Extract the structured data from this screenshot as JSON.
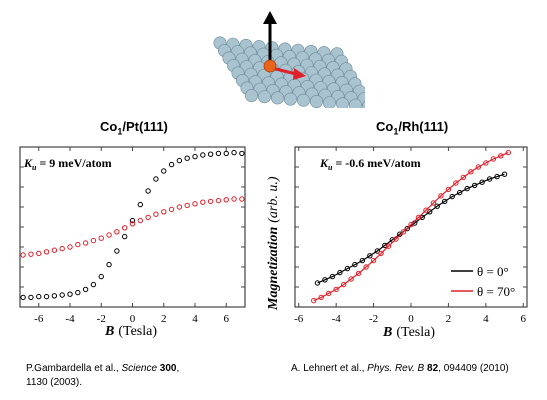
{
  "top_illustration": {
    "description_icon": "atom-on-surface-icon",
    "moment_color": "#000000",
    "inplane_color": "#e0202a",
    "atom_color": "#e8641a",
    "surface_color": "#a9c3d0"
  },
  "panels": [
    {
      "title_main": "Co",
      "title_sub": "1",
      "title_rest": "/Pt(111)",
      "annotation": "= 9 meV/atom",
      "annotation_symbol": "K",
      "annotation_symbol_sub": "u",
      "xlabel": "B",
      "xlabel_unit": "(Tesla)",
      "ylabel": "",
      "citation_line1_prefix": "P.Gambardella et al., ",
      "citation_journal": "Science",
      "citation_volume": "300",
      "citation_line1_suffix": ",",
      "citation_line2": "1130 (2003)."
    },
    {
      "title_main": "Co",
      "title_sub": "1",
      "title_rest": "/Rh(111)",
      "annotation": "= -0.6 meV/atom",
      "annotation_symbol": "K",
      "annotation_symbol_sub": "u",
      "xlabel": "B",
      "xlabel_unit": "(Tesla)",
      "ylabel": "Magnetization",
      "ylabel_unit": "(arb. u.)",
      "legend": [
        "θ = 0°",
        "θ = 70°"
      ],
      "citation_prefix": "A. Lehnert et al., ",
      "citation_journal": "Phys. Rev. B",
      "citation_volume": "82",
      "citation_suffix": ", 094409 (2010)"
    }
  ],
  "chart_data": [
    {
      "type": "scatter",
      "title": "Co1/Pt(111)",
      "xlabel": "B (Tesla)",
      "ylabel": "",
      "xlim": [
        -7.2,
        7.2
      ],
      "ylim": [
        -1,
        1
      ],
      "xticks": [
        -6,
        -4,
        -2,
        0,
        2,
        4,
        6
      ],
      "colors": {
        "series_black": "#000000",
        "series_red": "#e0202a"
      },
      "series": [
        {
          "color": "#000000",
          "x": [
            -7.0,
            -6.5,
            -6.0,
            -5.5,
            -5.0,
            -4.5,
            -4.0,
            -3.5,
            -3.0,
            -2.5,
            -2.0,
            -1.5,
            -1.0,
            -0.5,
            0.0,
            0.5,
            1.0,
            1.5,
            2.0,
            2.5,
            3.0,
            3.5,
            4.0,
            4.5,
            5.0,
            5.5,
            6.0,
            6.5,
            7.0
          ],
          "y": [
            -0.88,
            -0.88,
            -0.87,
            -0.87,
            -0.86,
            -0.85,
            -0.84,
            -0.82,
            -0.78,
            -0.72,
            -0.62,
            -0.47,
            -0.3,
            -0.12,
            0.08,
            0.28,
            0.45,
            0.6,
            0.7,
            0.78,
            0.83,
            0.86,
            0.88,
            0.9,
            0.91,
            0.92,
            0.92,
            0.93,
            0.92
          ]
        },
        {
          "color": "#e0202a",
          "x": [
            -7.0,
            -6.5,
            -6.0,
            -5.5,
            -5.0,
            -4.5,
            -4.0,
            -3.5,
            -3.0,
            -2.5,
            -2.0,
            -1.5,
            -1.0,
            -0.5,
            0.0,
            0.5,
            1.0,
            1.5,
            2.0,
            2.5,
            3.0,
            3.5,
            4.0,
            4.5,
            5.0,
            5.5,
            6.0,
            6.5,
            7.0
          ],
          "y": [
            -0.35,
            -0.34,
            -0.33,
            -0.31,
            -0.29,
            -0.27,
            -0.25,
            -0.22,
            -0.2,
            -0.17,
            -0.14,
            -0.1,
            -0.06,
            -0.01,
            0.04,
            0.08,
            0.12,
            0.16,
            0.19,
            0.22,
            0.25,
            0.27,
            0.29,
            0.31,
            0.32,
            0.33,
            0.34,
            0.35,
            0.35
          ]
        }
      ]
    },
    {
      "type": "scatter",
      "title": "Co1/Rh(111)",
      "xlabel": "B (Tesla)",
      "ylabel": "Magnetization (arb. u.)",
      "xlim": [
        -6.2,
        6.2
      ],
      "ylim": [
        -1,
        1
      ],
      "xticks": [
        -6,
        -4,
        -2,
        0,
        2,
        4,
        6
      ],
      "legend_position": "bottom-right",
      "series": [
        {
          "name": "θ = 0°",
          "color": "#000000",
          "x": [
            -5.0,
            -4.6,
            -4.2,
            -3.8,
            -3.4,
            -3.0,
            -2.6,
            -2.2,
            -1.8,
            -1.4,
            -1.0,
            -0.6,
            -0.2,
            0.2,
            0.6,
            1.0,
            1.4,
            1.8,
            2.2,
            2.6,
            3.0,
            3.4,
            3.8,
            4.2,
            4.6,
            5.0
          ],
          "y": [
            -0.7,
            -0.66,
            -0.62,
            -0.57,
            -0.52,
            -0.47,
            -0.42,
            -0.36,
            -0.3,
            -0.23,
            -0.16,
            -0.09,
            -0.02,
            0.05,
            0.12,
            0.19,
            0.26,
            0.32,
            0.38,
            0.43,
            0.48,
            0.52,
            0.56,
            0.6,
            0.63,
            0.66
          ]
        },
        {
          "name": "θ = 70°",
          "color": "#e0202a",
          "x": [
            -5.2,
            -4.8,
            -4.4,
            -4.0,
            -3.6,
            -3.2,
            -2.8,
            -2.4,
            -2.0,
            -1.6,
            -1.2,
            -0.8,
            -0.4,
            0.0,
            0.4,
            0.8,
            1.2,
            1.6,
            2.0,
            2.4,
            2.8,
            3.2,
            3.6,
            4.0,
            4.4,
            4.8,
            5.2
          ],
          "y": [
            -0.92,
            -0.88,
            -0.83,
            -0.78,
            -0.72,
            -0.65,
            -0.58,
            -0.5,
            -0.42,
            -0.33,
            -0.24,
            -0.15,
            -0.06,
            0.03,
            0.12,
            0.21,
            0.3,
            0.39,
            0.47,
            0.55,
            0.62,
            0.69,
            0.75,
            0.8,
            0.85,
            0.89,
            0.93
          ]
        }
      ]
    }
  ]
}
